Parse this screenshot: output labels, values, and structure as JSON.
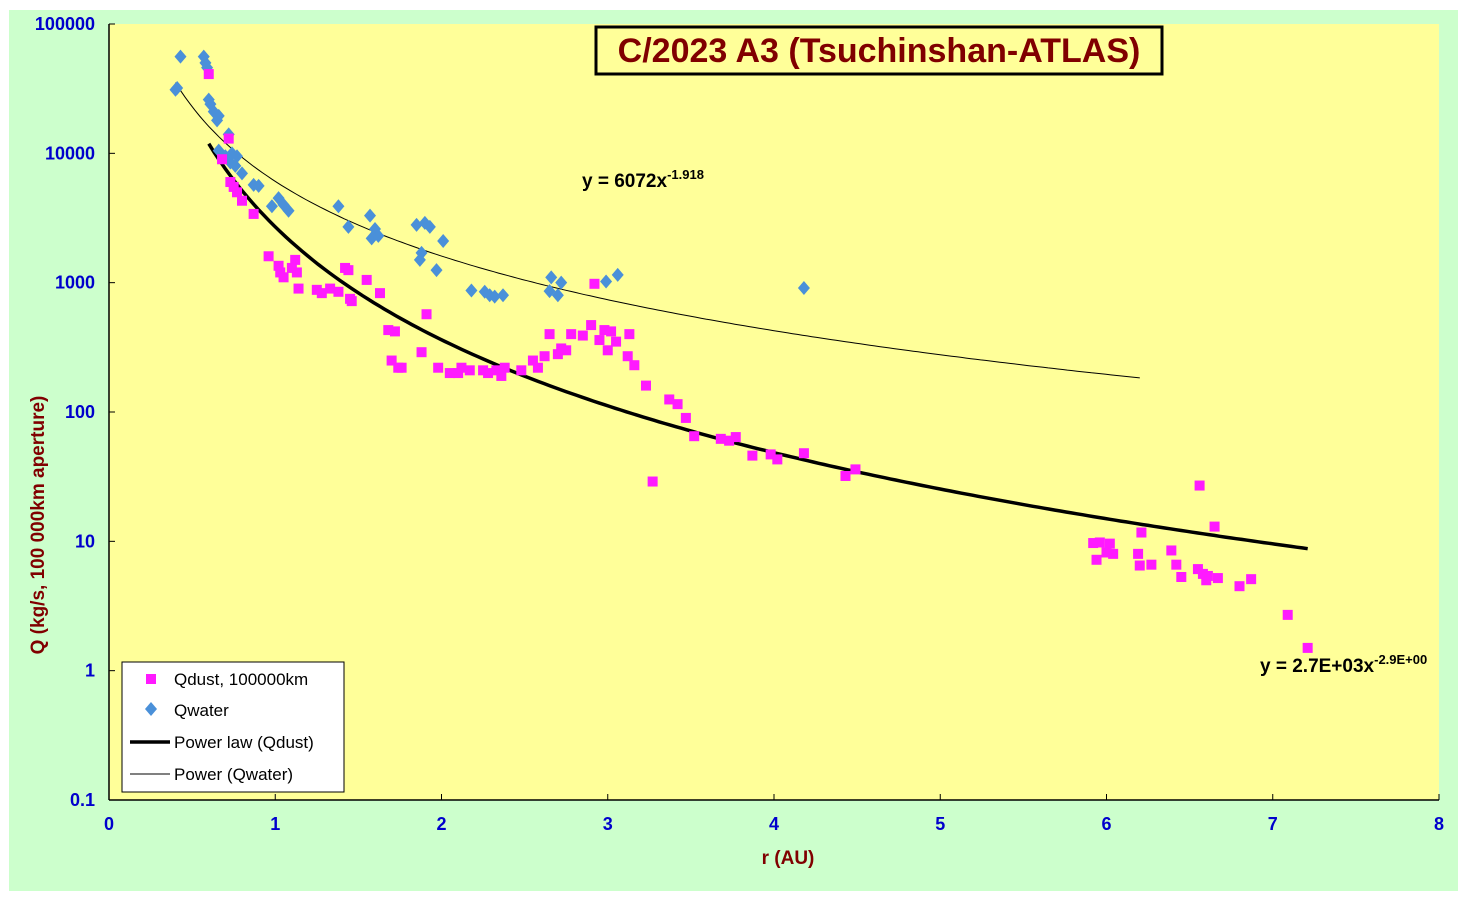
{
  "chart_data": {
    "type": "scatter",
    "title": "C/2023 A3 (Tsuchinshan-ATLAS)",
    "xlabel": "r (AU)",
    "ylabel": "Q (kg/s, 100 000km aperture)",
    "xlim": [
      0,
      8
    ],
    "ylim": [
      0.1,
      100000
    ],
    "y_scale": "log",
    "x_ticks": [
      "0",
      "1",
      "2",
      "3",
      "4",
      "5",
      "6",
      "7",
      "8"
    ],
    "y_ticks": [
      "100000",
      "10000",
      "1000",
      "100",
      "10",
      "1",
      "0.1"
    ],
    "grid": false,
    "legend_position": "bottom-left",
    "colors": {
      "outer_background": "#ccffcc",
      "plot_background": "#ffff99",
      "dust": "#ff1aff",
      "water": "#4a90d9",
      "title_text": "#800000",
      "axis_label": "#800000",
      "tick_label": "#0000cc"
    },
    "series": [
      {
        "name": "Qdust, 100000km",
        "marker": "square",
        "points": [
          [
            0.6,
            41000
          ],
          [
            0.68,
            9000
          ],
          [
            0.72,
            13000
          ],
          [
            0.73,
            6000
          ],
          [
            0.75,
            5500
          ],
          [
            0.77,
            5000
          ],
          [
            0.8,
            4300
          ],
          [
            0.87,
            3400
          ],
          [
            0.96,
            1600
          ],
          [
            1.02,
            1350
          ],
          [
            1.03,
            1200
          ],
          [
            1.05,
            1100
          ],
          [
            1.1,
            1300
          ],
          [
            1.12,
            1500
          ],
          [
            1.13,
            1200
          ],
          [
            1.14,
            900
          ],
          [
            1.25,
            880
          ],
          [
            1.28,
            830
          ],
          [
            1.33,
            900
          ],
          [
            1.38,
            850
          ],
          [
            1.42,
            1300
          ],
          [
            1.44,
            1250
          ],
          [
            1.45,
            750
          ],
          [
            1.46,
            720
          ],
          [
            1.55,
            1050
          ],
          [
            1.63,
            830
          ],
          [
            1.68,
            430
          ],
          [
            1.7,
            250
          ],
          [
            1.72,
            420
          ],
          [
            1.74,
            220
          ],
          [
            1.76,
            220
          ],
          [
            1.88,
            290
          ],
          [
            1.91,
            570
          ],
          [
            1.98,
            220
          ],
          [
            2.05,
            200
          ],
          [
            2.1,
            200
          ],
          [
            2.12,
            220
          ],
          [
            2.17,
            210
          ],
          [
            2.25,
            210
          ],
          [
            2.28,
            200
          ],
          [
            2.33,
            210
          ],
          [
            2.36,
            190
          ],
          [
            2.38,
            220
          ],
          [
            2.48,
            210
          ],
          [
            2.55,
            250
          ],
          [
            2.58,
            220
          ],
          [
            2.62,
            270
          ],
          [
            2.65,
            400
          ],
          [
            2.7,
            280
          ],
          [
            2.72,
            310
          ],
          [
            2.75,
            300
          ],
          [
            2.78,
            400
          ],
          [
            2.85,
            390
          ],
          [
            2.9,
            470
          ],
          [
            2.92,
            980
          ],
          [
            2.95,
            360
          ],
          [
            2.98,
            430
          ],
          [
            3.0,
            300
          ],
          [
            3.02,
            420
          ],
          [
            3.05,
            350
          ],
          [
            3.12,
            270
          ],
          [
            3.13,
            400
          ],
          [
            3.16,
            230
          ],
          [
            3.23,
            160
          ],
          [
            3.27,
            29
          ],
          [
            3.37,
            125
          ],
          [
            3.42,
            115
          ],
          [
            3.47,
            90
          ],
          [
            3.52,
            65
          ],
          [
            3.68,
            62
          ],
          [
            3.73,
            60
          ],
          [
            3.77,
            64
          ],
          [
            3.87,
            46
          ],
          [
            3.98,
            47
          ],
          [
            4.02,
            43
          ],
          [
            4.18,
            48
          ],
          [
            4.43,
            32
          ],
          [
            4.49,
            36
          ],
          [
            5.92,
            9.7
          ],
          [
            5.94,
            7.2
          ],
          [
            5.96,
            9.8
          ],
          [
            6.0,
            8.2
          ],
          [
            6.02,
            9.6
          ],
          [
            6.04,
            8.0
          ],
          [
            6.19,
            8.0
          ],
          [
            6.2,
            6.5
          ],
          [
            6.21,
            11.7
          ],
          [
            6.27,
            6.6
          ],
          [
            6.39,
            8.5
          ],
          [
            6.42,
            6.6
          ],
          [
            6.45,
            5.3
          ],
          [
            6.55,
            6.1
          ],
          [
            6.56,
            27
          ],
          [
            6.58,
            5.6
          ],
          [
            6.6,
            5.0
          ],
          [
            6.61,
            5.4
          ],
          [
            6.65,
            13
          ],
          [
            6.67,
            5.2
          ],
          [
            6.8,
            4.5
          ],
          [
            6.87,
            5.1
          ],
          [
            7.09,
            2.7
          ],
          [
            7.21,
            1.5
          ]
        ]
      },
      {
        "name": "Qwater",
        "marker": "diamond",
        "points": [
          [
            0.4,
            31000
          ],
          [
            0.41,
            32000
          ],
          [
            0.43,
            56000
          ],
          [
            0.57,
            56000
          ],
          [
            0.58,
            50000
          ],
          [
            0.59,
            46000
          ],
          [
            0.6,
            26000
          ],
          [
            0.61,
            24000
          ],
          [
            0.63,
            21000
          ],
          [
            0.65,
            18000
          ],
          [
            0.66,
            19500
          ],
          [
            0.66,
            10500
          ],
          [
            0.7,
            9500
          ],
          [
            0.72,
            14000
          ],
          [
            0.73,
            8500
          ],
          [
            0.74,
            10000
          ],
          [
            0.76,
            8000
          ],
          [
            0.77,
            9500
          ],
          [
            0.8,
            7000
          ],
          [
            0.87,
            5700
          ],
          [
            0.9,
            5600
          ],
          [
            0.98,
            3900
          ],
          [
            1.02,
            4500
          ],
          [
            1.05,
            4000
          ],
          [
            1.08,
            3600
          ],
          [
            1.38,
            3900
          ],
          [
            1.44,
            2700
          ],
          [
            1.57,
            3300
          ],
          [
            1.58,
            2200
          ],
          [
            1.6,
            2600
          ],
          [
            1.62,
            2300
          ],
          [
            1.85,
            2800
          ],
          [
            1.87,
            1500
          ],
          [
            1.88,
            1700
          ],
          [
            1.9,
            2900
          ],
          [
            1.93,
            2700
          ],
          [
            1.97,
            1250
          ],
          [
            2.01,
            2100
          ],
          [
            2.18,
            870
          ],
          [
            2.26,
            850
          ],
          [
            2.29,
            800
          ],
          [
            2.32,
            780
          ],
          [
            2.37,
            800
          ],
          [
            2.65,
            860
          ],
          [
            2.66,
            1100
          ],
          [
            2.7,
            800
          ],
          [
            2.72,
            1000
          ],
          [
            2.99,
            1020
          ],
          [
            3.06,
            1150
          ],
          [
            4.18,
            910
          ]
        ]
      },
      {
        "name": "Power law (Qdust)",
        "line": "thick",
        "equation": "y = 2.7E+03x",
        "equation_exponent": "-2.9E+00",
        "a": 2700,
        "b": -2.9,
        "x_range": [
          0.6,
          7.21
        ]
      },
      {
        "name": "Power (Qwater)",
        "line": "thin",
        "equation": "y = 6072x",
        "equation_exponent": "-1.918",
        "a": 6072,
        "b": -1.918,
        "x_range": [
          0.4,
          6.2
        ]
      }
    ]
  }
}
